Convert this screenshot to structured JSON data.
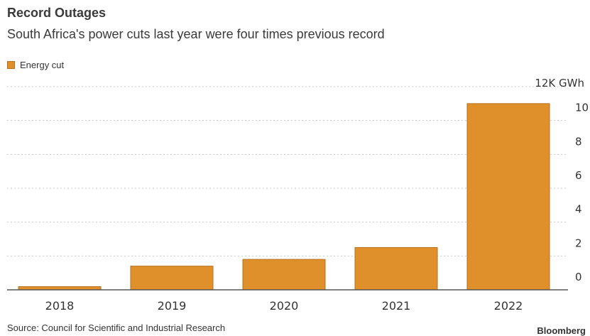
{
  "header": {
    "title": "Record Outages",
    "subtitle": "South Africa's power cuts last year were four times previous record"
  },
  "footer": {
    "source": "Source: Council for Scientific and Industrial Research",
    "brand": "Bloomberg"
  },
  "chart_data": {
    "type": "bar",
    "categories": [
      "2018",
      "2019",
      "2020",
      "2021",
      "2022"
    ],
    "series": [
      {
        "name": "Energy cut",
        "values": [
          190,
          1400,
          1800,
          2500,
          11000
        ],
        "color": "#E0902A"
      }
    ],
    "y_unit": "12K GWh",
    "yticks": [
      0,
      2000,
      4000,
      6000,
      8000,
      10000
    ],
    "ytick_labels": [
      "0",
      "2",
      "4",
      "6",
      "8",
      "10"
    ],
    "ylim": [
      0,
      12000
    ],
    "grid": true,
    "legend_position": "top-left",
    "axis_position": "right"
  }
}
